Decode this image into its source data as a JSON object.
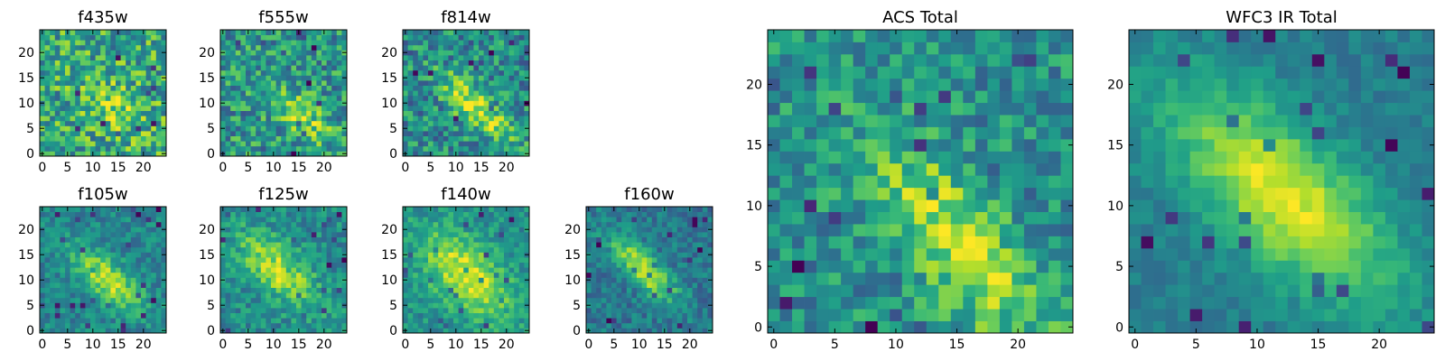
{
  "figure_title": "",
  "chart_data": [
    {
      "type": "heatmap",
      "title": "f435w",
      "grid": "25x25",
      "xlim": [
        -0.5,
        24.5
      ],
      "ylim": [
        -0.5,
        24.5
      ],
      "xticks": [
        0,
        5,
        10,
        15,
        20
      ],
      "yticks": [
        0,
        5,
        10,
        15,
        20
      ],
      "colormap": "viridis",
      "signal": "weak diffuse source near center",
      "peak_xy": [
        15,
        9
      ]
    },
    {
      "type": "heatmap",
      "title": "f555w",
      "grid": "25x25",
      "xlim": [
        -0.5,
        24.5
      ],
      "ylim": [
        -0.5,
        24.5
      ],
      "xticks": [
        0,
        5,
        10,
        15,
        20
      ],
      "yticks": [
        0,
        5,
        10,
        15,
        20
      ],
      "colormap": "viridis",
      "signal": "faint elongated source",
      "peak_xy": [
        15,
        8
      ]
    },
    {
      "type": "heatmap",
      "title": "f814w",
      "grid": "25x25",
      "xlim": [
        -0.5,
        24.5
      ],
      "ylim": [
        -0.5,
        24.5
      ],
      "xticks": [
        0,
        5,
        10,
        15,
        20
      ],
      "yticks": [
        0,
        5,
        10,
        15,
        20
      ],
      "colormap": "viridis",
      "signal": "diagonal elongated source",
      "peak_xy": [
        14,
        9
      ]
    },
    {
      "type": "heatmap",
      "title": "f105w",
      "grid": "25x25",
      "xlim": [
        -0.5,
        24.5
      ],
      "ylim": [
        -0.5,
        24.5
      ],
      "xticks": [
        0,
        5,
        10,
        15,
        20
      ],
      "yticks": [
        0,
        5,
        10,
        15,
        20
      ],
      "colormap": "viridis",
      "signal": "diagonal elongated source",
      "peak_xy": [
        13,
        10
      ]
    },
    {
      "type": "heatmap",
      "title": "f125w",
      "grid": "25x25",
      "xlim": [
        -0.5,
        24.5
      ],
      "ylim": [
        -0.5,
        24.5
      ],
      "xticks": [
        0,
        5,
        10,
        15,
        20
      ],
      "yticks": [
        0,
        5,
        10,
        15,
        20
      ],
      "colormap": "viridis",
      "signal": "diagonal elongated source",
      "peak_xy": [
        11,
        12
      ]
    },
    {
      "type": "heatmap",
      "title": "f140w",
      "grid": "25x25",
      "xlim": [
        -0.5,
        24.5
      ],
      "ylim": [
        -0.5,
        24.5
      ],
      "xticks": [
        0,
        5,
        10,
        15,
        20
      ],
      "yticks": [
        0,
        5,
        10,
        15,
        20
      ],
      "colormap": "viridis",
      "signal": "broad bright diagonal source",
      "peak_xy": [
        12,
        11
      ]
    },
    {
      "type": "heatmap",
      "title": "f160w",
      "grid": "25x25",
      "xlim": [
        -0.5,
        24.5
      ],
      "ylim": [
        -0.5,
        24.5
      ],
      "xticks": [
        0,
        5,
        10,
        15,
        20
      ],
      "yticks": [
        0,
        5,
        10,
        15,
        20
      ],
      "colormap": "viridis",
      "signal": "narrow bright diagonal source",
      "peak_xy": [
        11,
        12
      ]
    },
    {
      "type": "heatmap",
      "title": "ACS Total",
      "grid": "25x25",
      "xlim": [
        -0.5,
        24.5
      ],
      "ylim": [
        -0.5,
        24.5
      ],
      "xticks": [
        0,
        5,
        10,
        15,
        20
      ],
      "yticks": [
        0,
        5,
        10,
        15,
        20
      ],
      "colormap": "viridis",
      "signal": "diagonal source, brightest lower center",
      "peak_xy": [
        15,
        7
      ]
    },
    {
      "type": "heatmap",
      "title": "WFC3 IR Total",
      "grid": "25x25",
      "xlim": [
        -0.5,
        24.5
      ],
      "ylim": [
        -0.5,
        24.5
      ],
      "xticks": [
        0,
        5,
        10,
        15,
        20
      ],
      "yticks": [
        0,
        5,
        10,
        15,
        20
      ],
      "colormap": "viridis",
      "signal": "smooth bright diagonal source",
      "peak_xy": [
        12,
        11
      ]
    }
  ]
}
